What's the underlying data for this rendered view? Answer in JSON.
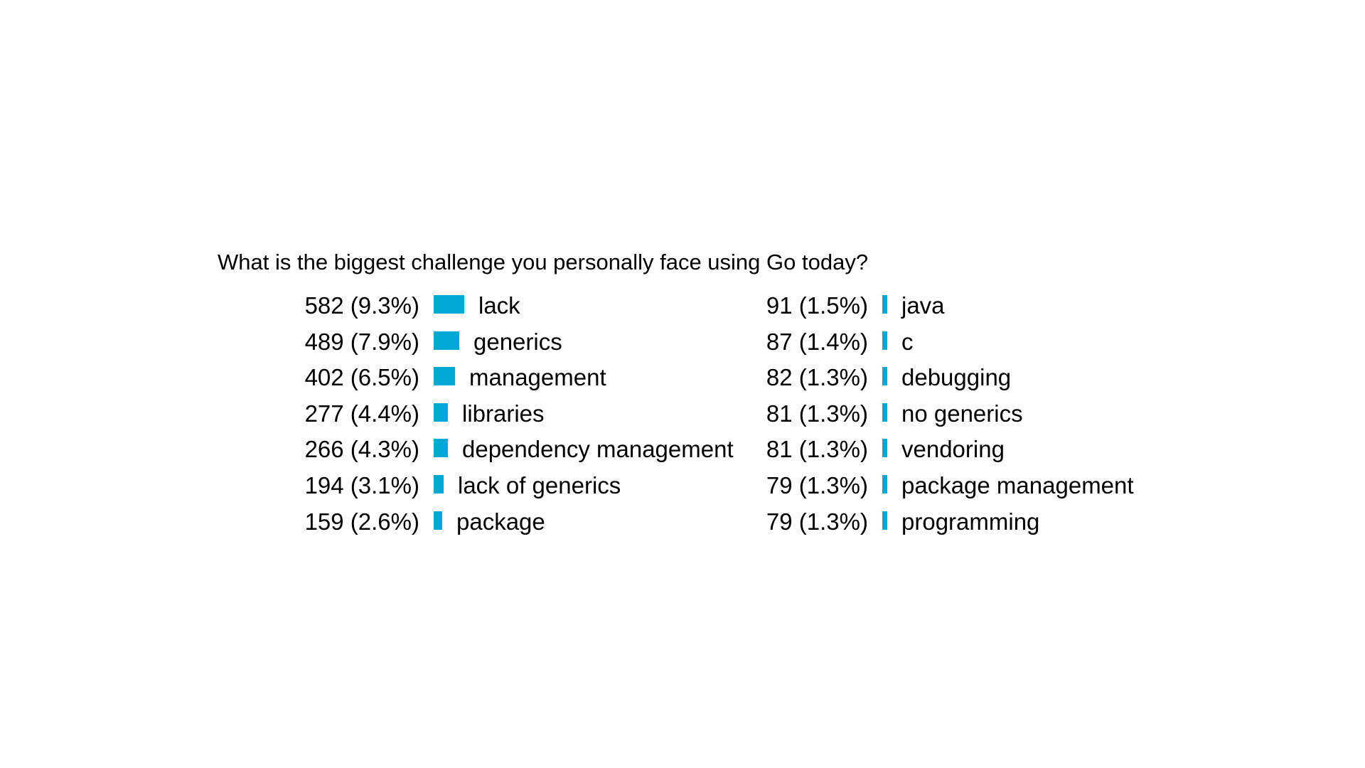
{
  "chart_data": {
    "type": "bar",
    "title": "What is the biggest challenge you personally face using Go today?",
    "bar_color": "#00a9d4",
    "columns": [
      [
        {
          "label": "lack",
          "count": "582",
          "pct": "(9.3%)",
          "value": 9.3
        },
        {
          "label": "generics",
          "count": "489",
          "pct": "(7.9%)",
          "value": 7.9
        },
        {
          "label": "management",
          "count": "402",
          "pct": "(6.5%)",
          "value": 6.5
        },
        {
          "label": "libraries",
          "count": "277",
          "pct": "(4.4%)",
          "value": 4.4
        },
        {
          "label": "dependency management",
          "count": "266",
          "pct": "(4.3%)",
          "value": 4.3
        },
        {
          "label": "lack of generics",
          "count": "194",
          "pct": "(3.1%)",
          "value": 3.1
        },
        {
          "label": "package",
          "count": "159",
          "pct": "(2.6%)",
          "value": 2.6
        }
      ],
      [
        {
          "label": "java",
          "count": "91",
          "pct": "(1.5%)",
          "value": 1.5
        },
        {
          "label": "c",
          "count": "87",
          "pct": "(1.4%)",
          "value": 1.4
        },
        {
          "label": "debugging",
          "count": "82",
          "pct": "(1.3%)",
          "value": 1.3
        },
        {
          "label": "no generics",
          "count": "81",
          "pct": "(1.3%)",
          "value": 1.3
        },
        {
          "label": "vendoring",
          "count": "81",
          "pct": "(1.3%)",
          "value": 1.3
        },
        {
          "label": "package management",
          "count": "79",
          "pct": "(1.3%)",
          "value": 1.3
        },
        {
          "label": "programming",
          "count": "79",
          "pct": "(1.3%)",
          "value": 1.3
        }
      ]
    ]
  }
}
